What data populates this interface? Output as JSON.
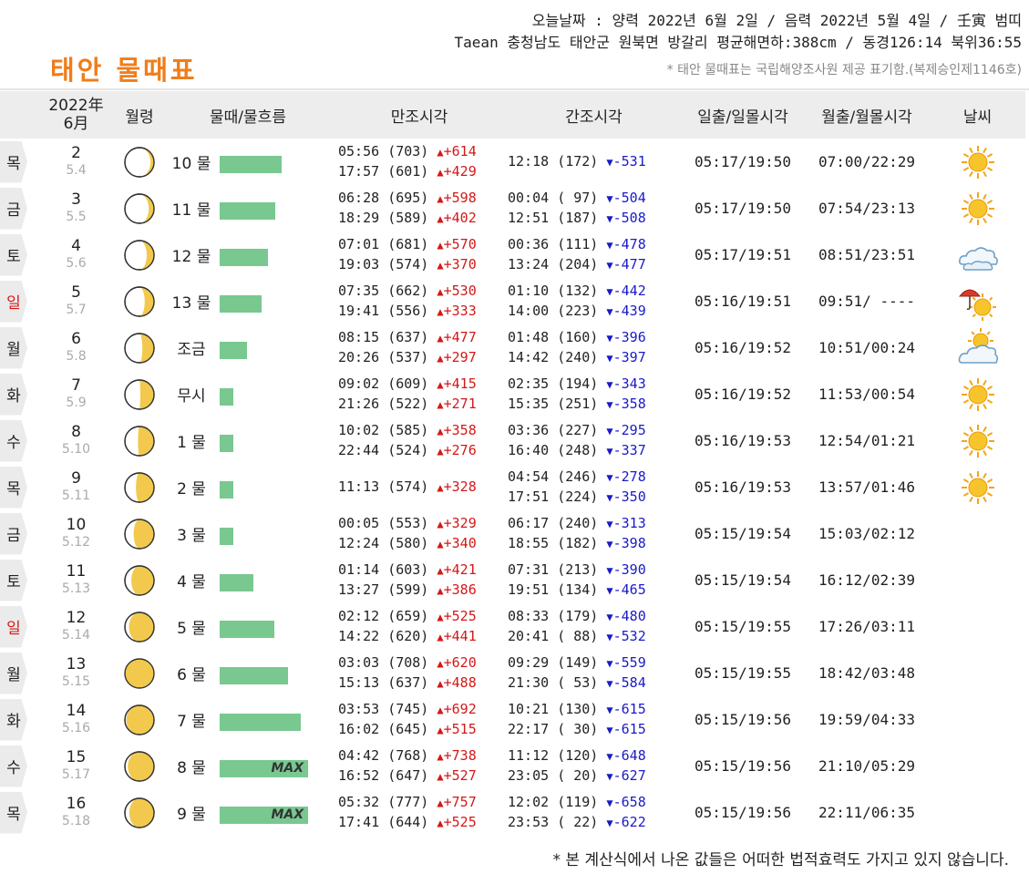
{
  "header": {
    "line1": "오늘날짜 : 양력 2022년 6월 2일 / 음력 2022년 5월 4일 / 壬寅 범띠",
    "line2": "Taean 충청남도 태안군 원북면 방갈리 평균해면하:388cm / 동경126:14 북위36:55",
    "title": "태안 물때표",
    "source": "* 태안 물때표는 국립해양조사원 제공 표기함.(복제승인제1146호)"
  },
  "columns": {
    "date_year": "2022年",
    "date_month": "6月",
    "moon_age": "월령",
    "tide": "물때/물흐름",
    "high": "만조시각",
    "low": "간조시각",
    "sun": "일출/일몰시각",
    "moon": "월출/월몰시각",
    "weather": "날씨"
  },
  "rows": [
    {
      "dow": "목",
      "sunday": false,
      "solar": "2",
      "lunar": "5.4",
      "moon_phase": 0.12,
      "tide": "10 물",
      "flow_pct": 0.7,
      "max": "",
      "high": [
        {
          "time": "05:56",
          "level": "(703)",
          "diff": "+614"
        },
        {
          "time": "17:57",
          "level": "(601)",
          "diff": "+429"
        }
      ],
      "low": [
        {
          "time": "12:18",
          "level": "(172)",
          "diff": "-531"
        }
      ],
      "sun": "05:17/19:50",
      "moon": "07:00/22:29",
      "weather": "sunny"
    },
    {
      "dow": "금",
      "sunday": false,
      "solar": "3",
      "lunar": "5.5",
      "moon_phase": 0.18,
      "tide": "11 물",
      "flow_pct": 0.63,
      "max": "",
      "high": [
        {
          "time": "06:28",
          "level": "(695)",
          "diff": "+598"
        },
        {
          "time": "18:29",
          "level": "(589)",
          "diff": "+402"
        }
      ],
      "low": [
        {
          "time": "00:04",
          "level": "( 97)",
          "diff": "-504"
        },
        {
          "time": "12:51",
          "level": "(187)",
          "diff": "-508"
        }
      ],
      "sun": "05:17/19:50",
      "moon": "07:54/23:13",
      "weather": "sunny"
    },
    {
      "dow": "토",
      "sunday": false,
      "solar": "4",
      "lunar": "5.6",
      "moon_phase": 0.25,
      "tide": "12 물",
      "flow_pct": 0.55,
      "max": "",
      "high": [
        {
          "time": "07:01",
          "level": "(681)",
          "diff": "+570"
        },
        {
          "time": "19:03",
          "level": "(574)",
          "diff": "+370"
        }
      ],
      "low": [
        {
          "time": "00:36",
          "level": "(111)",
          "diff": "-478"
        },
        {
          "time": "13:24",
          "level": "(204)",
          "diff": "-477"
        }
      ],
      "sun": "05:17/19:51",
      "moon": "08:51/23:51",
      "weather": "cloudy"
    },
    {
      "dow": "일",
      "sunday": true,
      "solar": "5",
      "lunar": "5.7",
      "moon_phase": 0.32,
      "tide": "13 물",
      "flow_pct": 0.47,
      "max": "",
      "high": [
        {
          "time": "07:35",
          "level": "(662)",
          "diff": "+530"
        },
        {
          "time": "19:41",
          "level": "(556)",
          "diff": "+333"
        }
      ],
      "low": [
        {
          "time": "01:10",
          "level": "(132)",
          "diff": "-442"
        },
        {
          "time": "14:00",
          "level": "(223)",
          "diff": "-439"
        }
      ],
      "sun": "05:16/19:51",
      "moon": "09:51/ ----",
      "weather": "rain-sun"
    },
    {
      "dow": "월",
      "sunday": false,
      "solar": "6",
      "lunar": "5.8",
      "moon_phase": 0.4,
      "tide": "조금",
      "flow_pct": 0.31,
      "max": "",
      "high": [
        {
          "time": "08:15",
          "level": "(637)",
          "diff": "+477"
        },
        {
          "time": "20:26",
          "level": "(537)",
          "diff": "+297"
        }
      ],
      "low": [
        {
          "time": "01:48",
          "level": "(160)",
          "diff": "-396"
        },
        {
          "time": "14:42",
          "level": "(240)",
          "diff": "-397"
        }
      ],
      "sun": "05:16/19:52",
      "moon": "10:51/00:24",
      "weather": "partly-cloudy"
    },
    {
      "dow": "화",
      "sunday": false,
      "solar": "7",
      "lunar": "5.9",
      "moon_phase": 0.47,
      "tide": "무시",
      "flow_pct": 0.15,
      "max": "",
      "high": [
        {
          "time": "09:02",
          "level": "(609)",
          "diff": "+415"
        },
        {
          "time": "21:26",
          "level": "(522)",
          "diff": "+271"
        }
      ],
      "low": [
        {
          "time": "02:35",
          "level": "(194)",
          "diff": "-343"
        },
        {
          "time": "15:35",
          "level": "(251)",
          "diff": "-358"
        }
      ],
      "sun": "05:16/19:52",
      "moon": "11:53/00:54",
      "weather": "sunny"
    },
    {
      "dow": "수",
      "sunday": false,
      "solar": "8",
      "lunar": "5.10",
      "moon_phase": 0.55,
      "tide": "1 물",
      "flow_pct": 0.15,
      "max": "",
      "high": [
        {
          "time": "10:02",
          "level": "(585)",
          "diff": "+358"
        },
        {
          "time": "22:44",
          "level": "(524)",
          "diff": "+276"
        }
      ],
      "low": [
        {
          "time": "03:36",
          "level": "(227)",
          "diff": "-295"
        },
        {
          "time": "16:40",
          "level": "(248)",
          "diff": "-337"
        }
      ],
      "sun": "05:16/19:53",
      "moon": "12:54/01:21",
      "weather": "sunny"
    },
    {
      "dow": "목",
      "sunday": false,
      "solar": "9",
      "lunar": "5.11",
      "moon_phase": 0.62,
      "tide": "2 물",
      "flow_pct": 0.15,
      "max": "",
      "high": [
        {
          "time": "11:13",
          "level": "(574)",
          "diff": "+328"
        }
      ],
      "low": [
        {
          "time": "04:54",
          "level": "(246)",
          "diff": "-278"
        },
        {
          "time": "17:51",
          "level": "(224)",
          "diff": "-350"
        }
      ],
      "sun": "05:16/19:53",
      "moon": "13:57/01:46",
      "weather": "sunny"
    },
    {
      "dow": "금",
      "sunday": false,
      "solar": "10",
      "lunar": "5.12",
      "moon_phase": 0.7,
      "tide": "3 물",
      "flow_pct": 0.15,
      "max": "",
      "high": [
        {
          "time": "00:05",
          "level": "(553)",
          "diff": "+329"
        },
        {
          "time": "12:24",
          "level": "(580)",
          "diff": "+340"
        }
      ],
      "low": [
        {
          "time": "06:17",
          "level": "(240)",
          "diff": "-313"
        },
        {
          "time": "18:55",
          "level": "(182)",
          "diff": "-398"
        }
      ],
      "sun": "05:15/19:54",
      "moon": "15:03/02:12",
      "weather": ""
    },
    {
      "dow": "토",
      "sunday": false,
      "solar": "11",
      "lunar": "5.13",
      "moon_phase": 0.78,
      "tide": "4 물",
      "flow_pct": 0.38,
      "max": "",
      "high": [
        {
          "time": "01:14",
          "level": "(603)",
          "diff": "+421"
        },
        {
          "time": "13:27",
          "level": "(599)",
          "diff": "+386"
        }
      ],
      "low": [
        {
          "time": "07:31",
          "level": "(213)",
          "diff": "-390"
        },
        {
          "time": "19:51",
          "level": "(134)",
          "diff": "-465"
        }
      ],
      "sun": "05:15/19:54",
      "moon": "16:12/02:39",
      "weather": ""
    },
    {
      "dow": "일",
      "sunday": true,
      "solar": "12",
      "lunar": "5.14",
      "moon_phase": 0.86,
      "tide": "5 물",
      "flow_pct": 0.62,
      "max": "",
      "high": [
        {
          "time": "02:12",
          "level": "(659)",
          "diff": "+525"
        },
        {
          "time": "14:22",
          "level": "(620)",
          "diff": "+441"
        }
      ],
      "low": [
        {
          "time": "08:33",
          "level": "(179)",
          "diff": "-480"
        },
        {
          "time": "20:41",
          "level": "( 88)",
          "diff": "-532"
        }
      ],
      "sun": "05:15/19:55",
      "moon": "17:26/03:11",
      "weather": ""
    },
    {
      "dow": "월",
      "sunday": false,
      "solar": "13",
      "lunar": "5.15",
      "moon_phase": 1.0,
      "tide": "6 물",
      "flow_pct": 0.77,
      "max": "",
      "high": [
        {
          "time": "03:03",
          "level": "(708)",
          "diff": "+620"
        },
        {
          "time": "15:13",
          "level": "(637)",
          "diff": "+488"
        }
      ],
      "low": [
        {
          "time": "09:29",
          "level": "(149)",
          "diff": "-559"
        },
        {
          "time": "21:30",
          "level": "( 53)",
          "diff": "-584"
        }
      ],
      "sun": "05:15/19:55",
      "moon": "18:42/03:48",
      "weather": ""
    },
    {
      "dow": "화",
      "sunday": false,
      "solar": "14",
      "lunar": "5.16",
      "moon_phase": 0.95,
      "tide": "7 물",
      "flow_pct": 0.92,
      "max": "",
      "high": [
        {
          "time": "03:53",
          "level": "(745)",
          "diff": "+692"
        },
        {
          "time": "16:02",
          "level": "(645)",
          "diff": "+515"
        }
      ],
      "low": [
        {
          "time": "10:21",
          "level": "(130)",
          "diff": "-615"
        },
        {
          "time": "22:17",
          "level": "( 30)",
          "diff": "-615"
        }
      ],
      "sun": "05:15/19:56",
      "moon": "19:59/04:33",
      "weather": ""
    },
    {
      "dow": "수",
      "sunday": false,
      "solar": "15",
      "lunar": "5.17",
      "moon_phase": 0.9,
      "tide": "8 물",
      "flow_pct": 1.0,
      "max": "MAX",
      "high": [
        {
          "time": "04:42",
          "level": "(768)",
          "diff": "+738"
        },
        {
          "time": "16:52",
          "level": "(647)",
          "diff": "+527"
        }
      ],
      "low": [
        {
          "time": "11:12",
          "level": "(120)",
          "diff": "-648"
        },
        {
          "time": "23:05",
          "level": "( 20)",
          "diff": "-627"
        }
      ],
      "sun": "05:15/19:56",
      "moon": "21:10/05:29",
      "weather": ""
    },
    {
      "dow": "목",
      "sunday": false,
      "solar": "16",
      "lunar": "5.18",
      "moon_phase": 0.85,
      "tide": "9 물",
      "flow_pct": 1.0,
      "max": "MAX",
      "high": [
        {
          "time": "05:32",
          "level": "(777)",
          "diff": "+757"
        },
        {
          "time": "17:41",
          "level": "(644)",
          "diff": "+525"
        }
      ],
      "low": [
        {
          "time": "12:02",
          "level": "(119)",
          "diff": "-658"
        },
        {
          "time": "23:53",
          "level": "( 22)",
          "diff": "-622"
        }
      ],
      "sun": "05:15/19:56",
      "moon": "22:11/06:35",
      "weather": ""
    }
  ],
  "footnote": "* 본 계산식에서 나온 값들은 어떠한 법적효력도 가지고 있지 않습니다.",
  "colors": {
    "title": "#f07d1a",
    "flow_bar": "#78c890",
    "high_diff": "#d41818",
    "low_diff": "#1a1ac8",
    "sunday": "#d81818",
    "moon_fill": "#f2c94c"
  }
}
